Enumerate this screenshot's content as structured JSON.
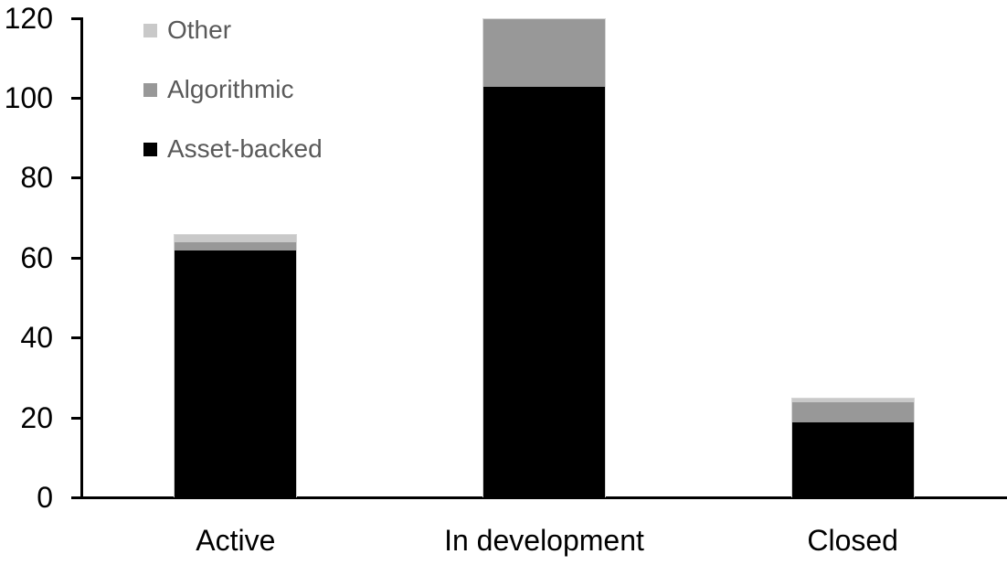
{
  "chart_data": {
    "type": "bar",
    "stacked": true,
    "title": "",
    "xlabel": "",
    "ylabel": "",
    "categories": [
      "Active",
      "In development",
      "Closed"
    ],
    "series": [
      {
        "name": "Asset-backed",
        "color": "#000000",
        "values": [
          62,
          103,
          19
        ]
      },
      {
        "name": "Algorithmic",
        "color": "#989898",
        "values": [
          2,
          17,
          5
        ]
      },
      {
        "name": "Other",
        "color": "#c9c9c9",
        "values": [
          2,
          0,
          1
        ]
      }
    ],
    "stack_totals": [
      66,
      120,
      25
    ],
    "ylim": [
      0,
      120
    ],
    "yticks": [
      0,
      20,
      40,
      60,
      80,
      100,
      120
    ],
    "grid": false,
    "legend": {
      "position": "top-left",
      "entries": [
        {
          "label": "Other",
          "color": "#c9c9c9"
        },
        {
          "label": "Algorithmic",
          "color": "#989898"
        },
        {
          "label": "Asset-backed",
          "color": "#000000"
        }
      ]
    }
  },
  "colors": {
    "background": "#ffffff",
    "axis": "#000000",
    "tick_label": "#000000",
    "category_label": "#000000",
    "legend_text": "#595959",
    "bar_outline": "#d6d6d6"
  }
}
